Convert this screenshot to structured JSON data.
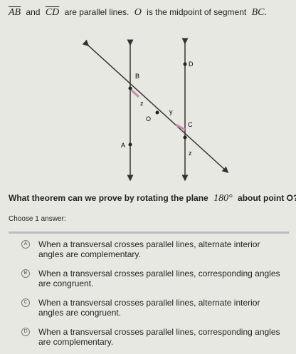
{
  "statement": {
    "line1": "AB",
    "and": "and",
    "line2": "CD",
    "rest_a": "are parallel lines.",
    "point": "O",
    "rest_b": "is the midpoint of segment",
    "segment": "BC."
  },
  "diagram": {
    "labels": [
      "D",
      "B",
      "z",
      "O",
      "y",
      "C",
      "A",
      "z"
    ]
  },
  "question": {
    "text_a": "What theorem can we prove by rotating the plane",
    "angle": "180°",
    "text_b": "about point O?"
  },
  "prompt": "Choose 1 answer:",
  "options": [
    {
      "letter": "A",
      "text": "When a transversal crosses parallel lines, alternate interior angles are complementary."
    },
    {
      "letter": "B",
      "text": "When a transversal crosses parallel lines, corresponding angles are congruent."
    },
    {
      "letter": "C",
      "text": "When a transversal crosses parallel lines, alternate interior angles are congruent."
    },
    {
      "letter": "D",
      "text": "When a transversal crosses parallel lines, corresponding angles are complementary."
    }
  ]
}
